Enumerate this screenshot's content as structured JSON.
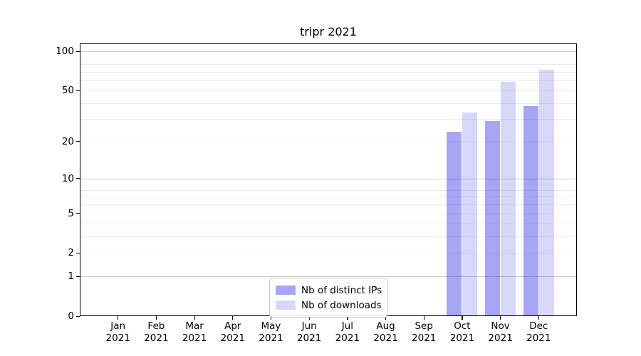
{
  "title": "tripr 2021",
  "chart_data": {
    "type": "bar",
    "title": "tripr 2021",
    "xlabel": "",
    "ylabel": "",
    "categories": [
      "Jan",
      "Feb",
      "Mar",
      "Apr",
      "May",
      "Jun",
      "Jul",
      "Aug",
      "Sep",
      "Oct",
      "Nov",
      "Dec"
    ],
    "year_label": "2021",
    "series": [
      {
        "name": "Nb of distinct IPs",
        "color": "rgba(20,20,225,0.38)",
        "legend_color": "#a6a6f4",
        "values": [
          null,
          null,
          null,
          null,
          null,
          null,
          null,
          null,
          null,
          24,
          29,
          38
        ]
      },
      {
        "name": "Nb of downloads",
        "color": "rgba(20,20,225,0.17)",
        "legend_color": "#d7d7fa",
        "values": [
          null,
          null,
          null,
          null,
          null,
          null,
          null,
          null,
          null,
          34,
          58,
          72
        ]
      }
    ],
    "y_scale": "log1p",
    "ylim": [
      0,
      115
    ],
    "y_ticks": [
      0,
      1,
      2,
      5,
      10,
      20,
      50,
      100
    ],
    "y_major_gridlines": [
      1,
      10,
      100
    ],
    "y_minor_gridlines": [
      2,
      3,
      4,
      5,
      6,
      7,
      8,
      9,
      20,
      30,
      40,
      50,
      60,
      70,
      80,
      90
    ],
    "grid": true,
    "legend_position": "lower center"
  },
  "colors": {
    "background": "#ffffff",
    "grid_minor": "#ebebeb",
    "grid_major": "#c9c9c9",
    "axis": "#000000",
    "legend_border": "#cccccc"
  }
}
